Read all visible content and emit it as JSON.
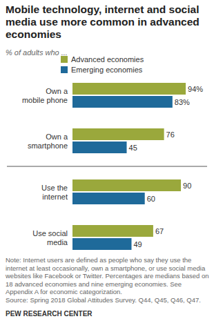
{
  "chart_data": {
    "type": "bar",
    "orientation": "horizontal",
    "title": "Mobile technology, internet and social media use more common in advanced economies",
    "subtitle": "% of adults who ...",
    "categories": [
      "Own a\nmobile phone",
      "Own a\nsmartphone",
      "Use the\ninternet",
      "Use social\nmedia"
    ],
    "series": [
      {
        "name": "Advanced economies",
        "color": "#9aa83c",
        "values": [
          94,
          76,
          90,
          67
        ],
        "value_labels": [
          "94%",
          "76",
          "90",
          "67"
        ]
      },
      {
        "name": "Emerging economies",
        "color": "#1f6a9a",
        "values": [
          83,
          45,
          60,
          49
        ],
        "value_labels": [
          "83%",
          "45",
          "60",
          "49"
        ]
      }
    ],
    "xlim": [
      0,
      100
    ],
    "data_labels": true,
    "tick_labels": false,
    "legend": "top",
    "note": "Note: Internet users are defined as people who say they use the internet at least occasionally, own a smartphone, or use social media websites like Facebook or Twitter. Percentages are medians based on 18 advanced economies and nine emerging economies. See Appendix A for economic categorization.",
    "source": "Source: Spring 2018 Global Attitudes Survey. Q44, Q45, Q46, Q47.",
    "credit": "PEW RESEARCH CENTER"
  }
}
